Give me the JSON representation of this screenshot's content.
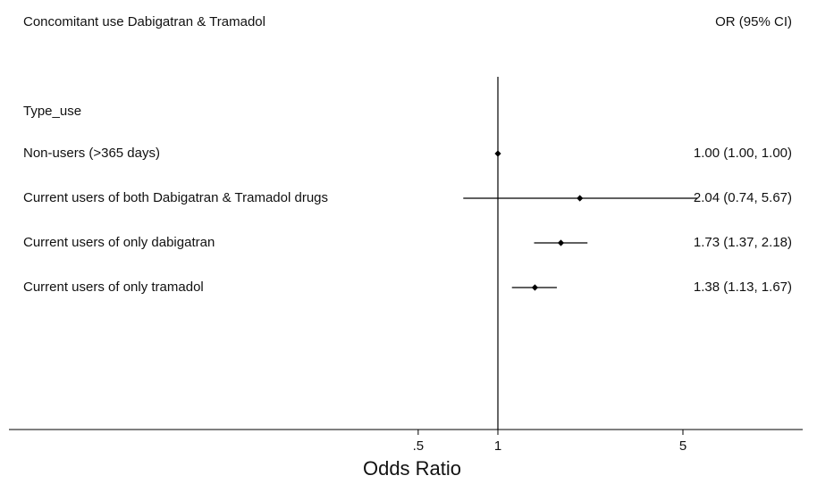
{
  "chart_data": {
    "type": "forest",
    "title": "Concomitant use Dabigatran & Tramadol",
    "effect_header": "OR (95% CI)",
    "group_label": "Type_use",
    "xlabel": "Odds Ratio",
    "x_scale": "log",
    "xlim": [
      0.3,
      12
    ],
    "reference_line": 1,
    "x_ticks": [
      {
        "value": 0.5,
        "label": ".5"
      },
      {
        "value": 1,
        "label": "1"
      },
      {
        "value": 5,
        "label": "5"
      }
    ],
    "rows": [
      {
        "label": "Non-users (>365 days)",
        "or": 1.0,
        "lower": 1.0,
        "upper": 1.0,
        "text": "1.00 (1.00, 1.00)"
      },
      {
        "label": "Current users of both Dabigatran & Tramadol drugs",
        "or": 2.04,
        "lower": 0.74,
        "upper": 5.67,
        "text": "2.04 (0.74, 5.67)"
      },
      {
        "label": "Current users of only dabigatran",
        "or": 1.73,
        "lower": 1.37,
        "upper": 2.18,
        "text": "1.73 (1.37, 2.18)"
      },
      {
        "label": "Current users of only tramadol",
        "or": 1.38,
        "lower": 1.13,
        "upper": 1.67,
        "text": "1.38 (1.13, 1.67)"
      }
    ]
  }
}
